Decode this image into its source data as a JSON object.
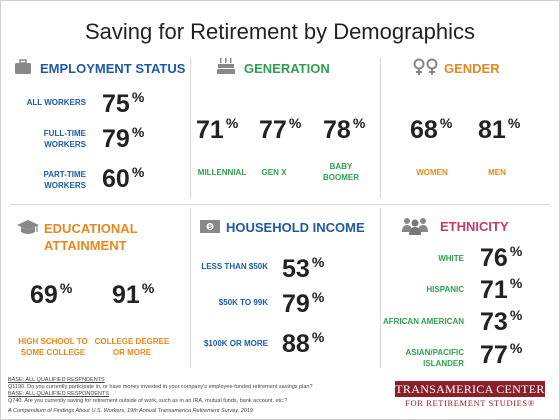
{
  "title": "Saving for Retirement by Demographics",
  "colors": {
    "blue": "#1d5aa6",
    "green": "#2f9e4f",
    "orange": "#e8871c",
    "pink": "#c33a6b",
    "logo": "#8a1f2c"
  },
  "employment": {
    "heading": "EMPLOYMENT STATUS",
    "icon": "briefcase-icon",
    "rows": [
      {
        "label": "ALL WORKERS",
        "value": "75"
      },
      {
        "label": "FULL-TIME WORKERS",
        "value": "79"
      },
      {
        "label": "PART-TIME WORKERS",
        "value": "60"
      }
    ]
  },
  "generation": {
    "heading": "GENERATION",
    "icon": "birthday-cake-icon",
    "items": [
      {
        "label": "MILLENNIAL",
        "value": "71"
      },
      {
        "label": "GEN X",
        "value": "77"
      },
      {
        "label": "BABY BOOMER",
        "value": "78"
      }
    ]
  },
  "gender": {
    "heading": "GENDER",
    "icon": "gender-symbols-icon",
    "items": [
      {
        "label": "WOMEN",
        "value": "68"
      },
      {
        "label": "MEN",
        "value": "81"
      }
    ]
  },
  "education": {
    "heading": "EDUCATIONAL ATTAINMENT",
    "icon": "graduation-cap-icon",
    "items": [
      {
        "label": "HIGH SCHOOL TO SOME COLLEGE",
        "value": "69"
      },
      {
        "label": "COLLEGE DEGREE OR MORE",
        "value": "91"
      }
    ]
  },
  "income": {
    "heading": "HOUSEHOLD INCOME",
    "icon": "dollar-bill-icon",
    "rows": [
      {
        "label": "LESS THAN $50K",
        "value": "53"
      },
      {
        "label": "$50K TO 99K",
        "value": "79"
      },
      {
        "label": "$100K OR MORE",
        "value": "88"
      }
    ]
  },
  "ethnicity": {
    "heading": "ETHNICITY",
    "icon": "people-group-icon",
    "rows": [
      {
        "label": "WHITE",
        "value": "76"
      },
      {
        "label": "HISPANIC",
        "value": "71"
      },
      {
        "label": "AFRICAN AMERICAN",
        "value": "73"
      },
      {
        "label": "ASIAN/PACIFIC ISLANDER",
        "value": "77"
      }
    ]
  },
  "percent_sign": "%",
  "footnotes": [
    "BASE: ALL QUALIFIED RESPNDENTS",
    "Q1190. Do you currently participate in, or have money invested in your company's employee-funded retirement savings plan?",
    "BASE: ALL QUALIFIED RESPONDENTS",
    "Q740. Are you currently saving for retirement outside of work, such as in an IRA, mutual funds, bank account, etc.?",
    "A Compendium of Findings About U.S. Workers, 19th Annual Transamerica Retirement Survey, 2019"
  ],
  "logo": {
    "line1": "TRANSAMERICA CENTER",
    "line2": "FOR RETIREMENT STUDIES®"
  }
}
